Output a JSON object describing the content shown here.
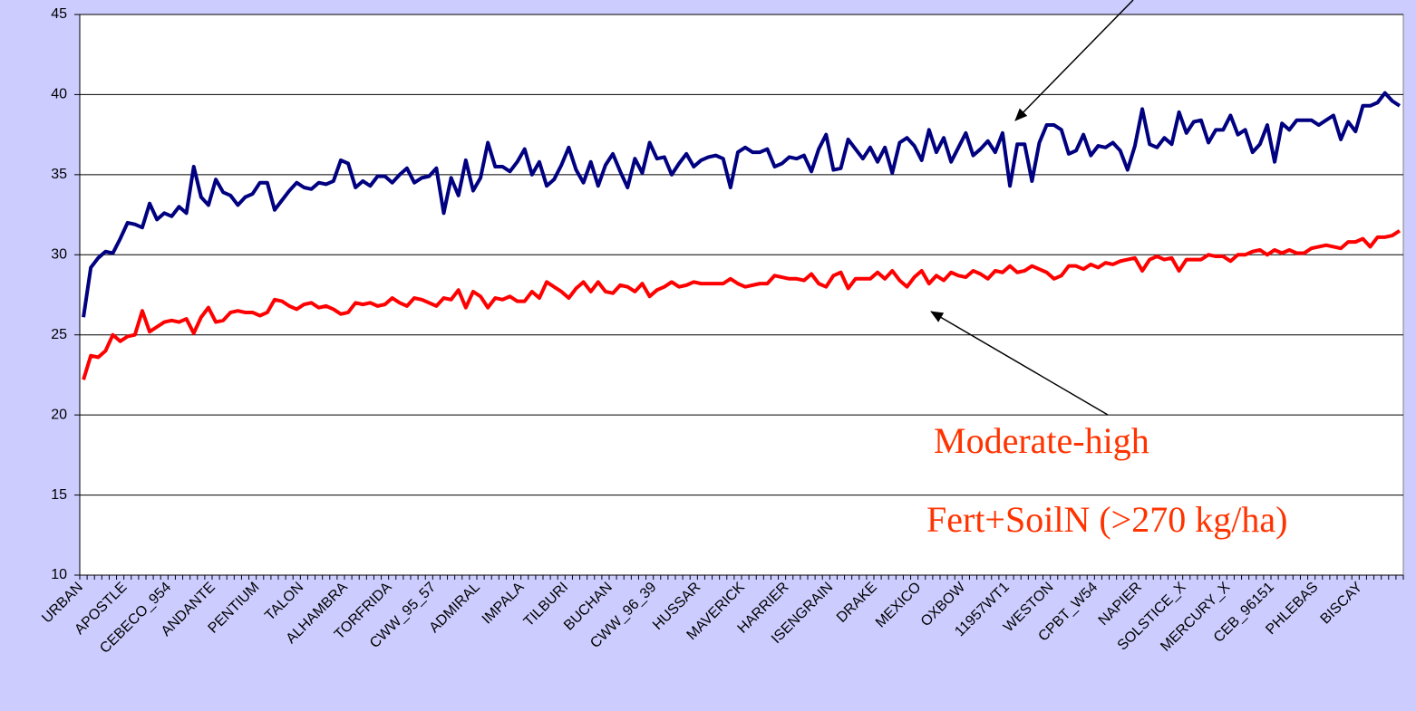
{
  "chart_data": {
    "type": "line",
    "categories": [
      "URBAN",
      null,
      null,
      null,
      null,
      null,
      "APOSTLE",
      null,
      null,
      null,
      null,
      null,
      "CEBECO_954",
      null,
      null,
      null,
      null,
      null,
      "ANDANTE",
      null,
      null,
      null,
      null,
      null,
      "PENTIUM",
      null,
      null,
      null,
      null,
      null,
      "TALON",
      null,
      null,
      null,
      null,
      null,
      "ALHAMBRA",
      null,
      null,
      null,
      null,
      null,
      "TORFRIDA",
      null,
      null,
      null,
      null,
      null,
      "CWW_95_57",
      null,
      null,
      null,
      null,
      null,
      "ADMIRAL",
      null,
      null,
      null,
      null,
      null,
      "IMPALA",
      null,
      null,
      null,
      null,
      null,
      "TILBURI",
      null,
      null,
      null,
      null,
      null,
      "BUCHAN",
      null,
      null,
      null,
      null,
      null,
      "CWW_96_39",
      null,
      null,
      null,
      null,
      null,
      "HUSSAR",
      null,
      null,
      null,
      null,
      null,
      "MAVERICK",
      null,
      null,
      null,
      null,
      null,
      "HARRIER",
      null,
      null,
      null,
      null,
      null,
      "ISENGRAIN",
      null,
      null,
      null,
      null,
      null,
      "DRAKE",
      null,
      null,
      null,
      null,
      null,
      "MEXICO",
      null,
      null,
      null,
      null,
      null,
      "OXBOW",
      null,
      null,
      null,
      null,
      null,
      "11957WT1",
      null,
      null,
      null,
      null,
      null,
      "WESTON",
      null,
      null,
      null,
      null,
      null,
      "CPBT_W54",
      null,
      null,
      null,
      null,
      null,
      "NAPIER",
      null,
      null,
      null,
      null,
      null,
      "SOLSTICE_X",
      null,
      null,
      null,
      null,
      null,
      "MERCURY_X",
      null,
      null,
      null,
      null,
      null,
      "CEB_96151",
      null,
      null,
      null,
      null,
      null,
      "PHLEBAS",
      null,
      null,
      null,
      null,
      null,
      "BISCAY",
      null,
      null,
      null,
      null,
      null
    ],
    "series": [
      {
        "color": "#000080",
        "values": [
          26.1,
          29.2,
          29.8,
          30.2,
          30.1,
          31.0,
          32.0,
          31.9,
          31.7,
          33.2,
          32.2,
          32.6,
          32.4,
          33.0,
          32.6,
          35.5,
          33.6,
          33.1,
          34.7,
          33.9,
          33.7,
          33.1,
          33.6,
          33.8,
          34.5,
          34.5,
          32.8,
          33.4,
          34.0,
          34.5,
          34.2,
          34.1,
          34.5,
          34.4,
          34.6,
          35.9,
          35.7,
          34.2,
          34.6,
          34.3,
          34.9,
          34.9,
          34.5,
          35.0,
          35.4,
          34.5,
          34.8,
          34.9,
          35.4,
          32.6,
          34.8,
          33.7,
          35.9,
          34.0,
          34.8,
          37.0,
          35.5,
          35.5,
          35.2,
          35.8,
          36.6,
          35.0,
          35.8,
          34.3,
          34.7,
          35.6,
          36.7,
          35.3,
          34.5,
          35.8,
          34.3,
          35.6,
          36.3,
          35.2,
          34.2,
          36.0,
          35.1,
          37.0,
          36.0,
          36.1,
          35.0,
          35.7,
          36.3,
          35.5,
          35.9,
          36.1,
          36.2,
          36.0,
          34.2,
          36.4,
          36.7,
          36.4,
          36.4,
          36.6,
          35.5,
          35.7,
          36.1,
          36.0,
          36.2,
          35.2,
          36.6,
          37.5,
          35.3,
          35.4,
          37.2,
          36.6,
          36.0,
          36.7,
          35.8,
          36.7,
          35.1,
          37.0,
          37.3,
          36.8,
          35.9,
          37.8,
          36.4,
          37.3,
          35.8,
          36.7,
          37.6,
          36.2,
          36.6,
          37.1,
          36.4,
          37.6,
          34.3,
          36.9,
          36.9,
          34.6,
          37.0,
          38.1,
          38.1,
          37.8,
          36.3,
          36.5,
          37.5,
          36.2,
          36.8,
          36.7,
          37.0,
          36.5,
          35.3,
          36.8,
          39.1,
          36.9,
          36.7,
          37.3,
          36.9,
          38.9,
          37.6,
          38.3,
          38.4,
          37.0,
          37.8,
          37.8,
          38.7,
          37.5,
          37.8,
          36.4,
          36.9,
          38.1,
          35.8,
          38.2,
          37.8,
          38.4,
          38.4,
          38.4,
          38.1,
          38.4,
          38.7,
          37.2,
          38.3,
          37.7,
          39.3,
          39.3,
          39.5,
          40.1,
          39.6,
          39.3
        ]
      },
      {
        "color": "#ff0000",
        "values": [
          22.2,
          23.7,
          23.6,
          24.0,
          25.0,
          24.6,
          24.9,
          25.0,
          26.5,
          25.2,
          25.5,
          25.8,
          25.9,
          25.8,
          26.0,
          25.1,
          26.1,
          26.7,
          25.8,
          25.9,
          26.4,
          26.5,
          26.4,
          26.4,
          26.2,
          26.4,
          27.2,
          27.1,
          26.8,
          26.6,
          26.9,
          27.0,
          26.7,
          26.8,
          26.6,
          26.3,
          26.4,
          27.0,
          26.9,
          27.0,
          26.8,
          26.9,
          27.3,
          27.0,
          26.8,
          27.3,
          27.2,
          27.0,
          26.8,
          27.3,
          27.2,
          27.8,
          26.7,
          27.7,
          27.4,
          26.7,
          27.3,
          27.2,
          27.4,
          27.1,
          27.1,
          27.7,
          27.3,
          28.3,
          28.0,
          27.7,
          27.3,
          27.9,
          28.3,
          27.7,
          28.3,
          27.7,
          27.6,
          28.1,
          28.0,
          27.7,
          28.2,
          27.4,
          27.8,
          28.0,
          28.3,
          28.0,
          28.1,
          28.3,
          28.2,
          28.2,
          28.2,
          28.2,
          28.5,
          28.2,
          28.0,
          28.1,
          28.2,
          28.2,
          28.7,
          28.6,
          28.5,
          28.5,
          28.4,
          28.8,
          28.2,
          28.0,
          28.7,
          28.9,
          27.9,
          28.5,
          28.5,
          28.5,
          28.9,
          28.5,
          29.0,
          28.4,
          28.0,
          28.6,
          29.0,
          28.2,
          28.7,
          28.4,
          28.9,
          28.7,
          28.6,
          29.0,
          28.8,
          28.5,
          29.0,
          28.9,
          29.3,
          28.9,
          29.0,
          29.3,
          29.1,
          28.9,
          28.5,
          28.7,
          29.3,
          29.3,
          29.1,
          29.4,
          29.2,
          29.5,
          29.4,
          29.6,
          29.7,
          29.8,
          29.0,
          29.7,
          29.9,
          29.7,
          29.8,
          29.0,
          29.7,
          29.7,
          29.7,
          30.0,
          29.9,
          29.9,
          29.6,
          30.0,
          30.0,
          30.2,
          30.3,
          30.0,
          30.3,
          30.1,
          30.3,
          30.1,
          30.1,
          30.4,
          30.5,
          30.6,
          30.5,
          30.4,
          30.8,
          30.8,
          31.0,
          30.5,
          31.1,
          31.1,
          31.2,
          31.5
        ]
      }
    ],
    "ylim": [
      10,
      45
    ],
    "yticks": [
      10,
      15,
      20,
      25,
      30,
      35,
      40,
      45
    ],
    "grid": true,
    "annotations": [
      "Moderate-high",
      "Fert+SoilN (>270 kg/ha)"
    ]
  }
}
